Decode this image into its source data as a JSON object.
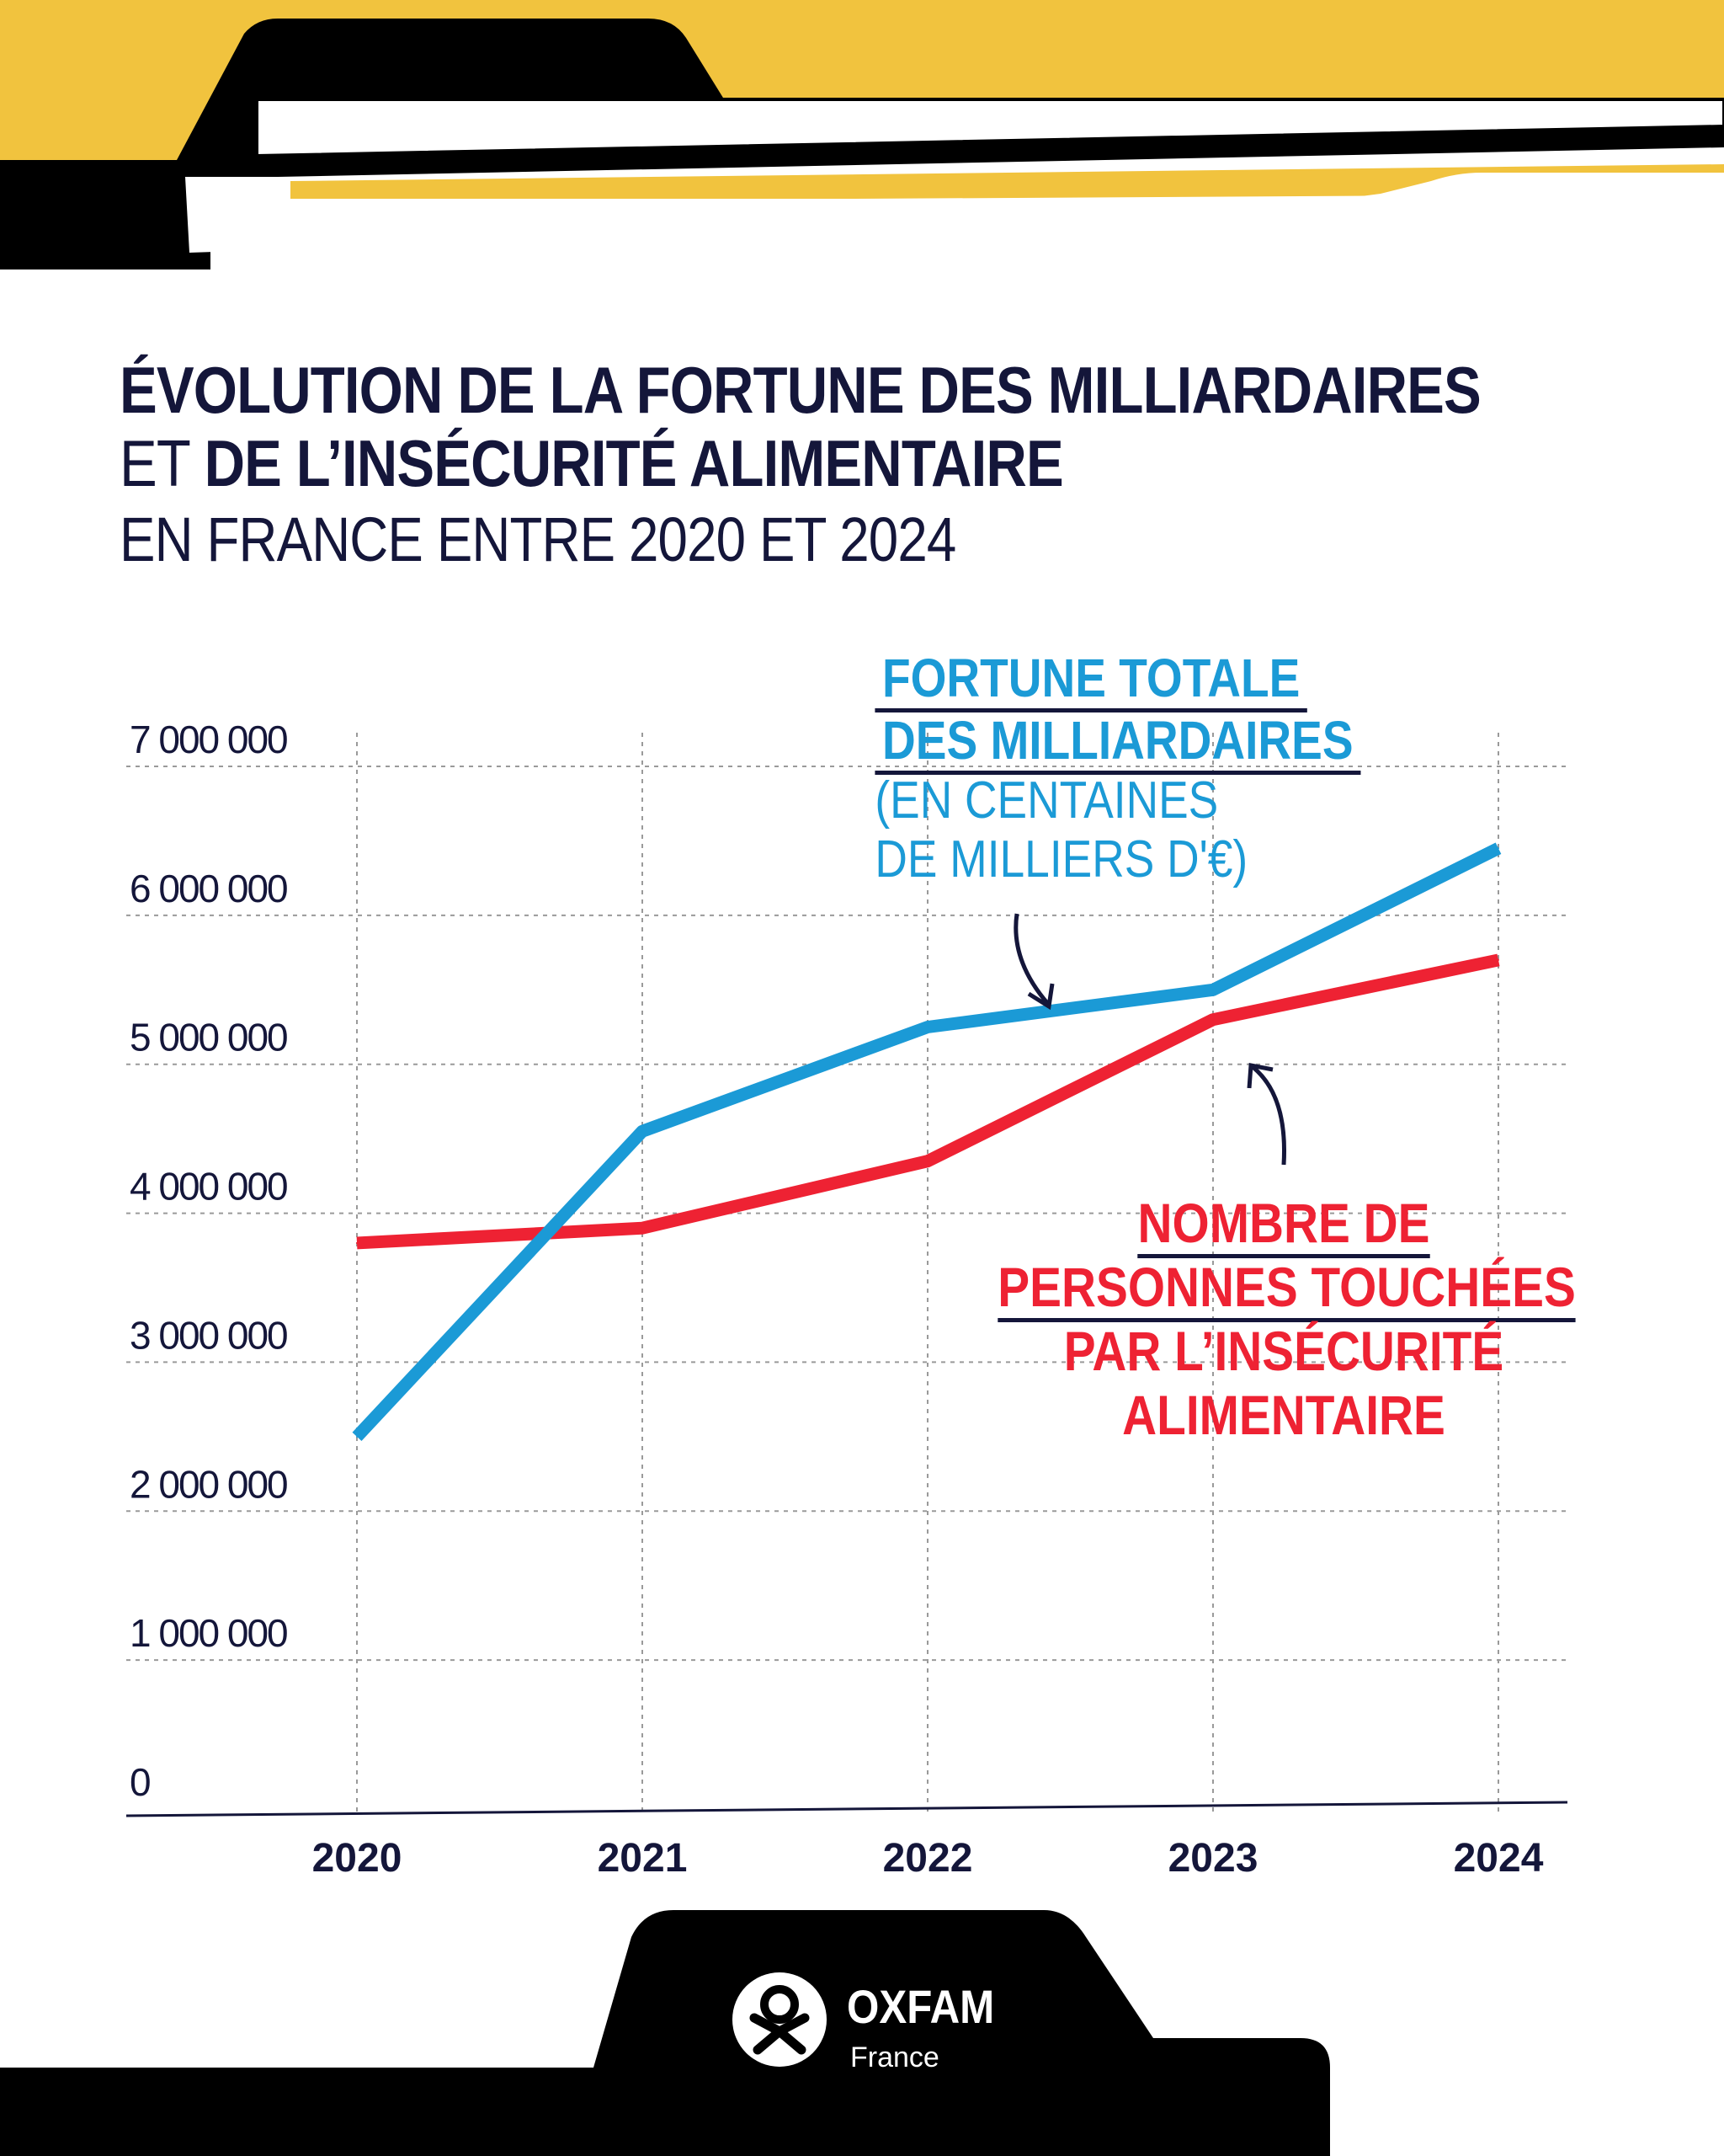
{
  "title": {
    "line1": "ÉVOLUTION DE LA FORTUNE DES MILLIARDAIRES",
    "line2_normal": "ET ",
    "line2_bold": "DE L’INSÉCURITÉ ALIMENTAIRE",
    "line3": "EN FRANCE ENTRE 2020 ET 2024"
  },
  "annotations": {
    "fortune": {
      "line1": "FORTUNE TOTALE",
      "line2": "DES MILLIARDAIRES",
      "line3": "(EN CENTAINES",
      "line4": "DE MILLIERS D'€)"
    },
    "insecurite": {
      "line1": "NOMBRE DE",
      "line2": "PERSONNES TOUCHÉES",
      "line3": "PAR L’INSÉCURITÉ",
      "line4": "ALIMENTAIRE"
    }
  },
  "brand": {
    "name": "OXFAM",
    "sub": "France"
  },
  "colors": {
    "yellow": "#f1c33e",
    "black": "#000000",
    "navy": "#14163a",
    "blue": "#1b9ad6",
    "red": "#ee2233",
    "grid": "#9a9a9a"
  },
  "chart_data": {
    "type": "line",
    "title": "ÉVOLUTION DE LA FORTUNE DES MILLIARDAIRES ET DE L’INSÉCURITÉ ALIMENTAIRE EN FRANCE ENTRE 2020 ET 2024",
    "x": [
      "2020",
      "2021",
      "2022",
      "2023",
      "2024"
    ],
    "ylim": [
      0,
      7000000
    ],
    "yticks": [
      0,
      1000000,
      2000000,
      3000000,
      4000000,
      5000000,
      6000000,
      7000000
    ],
    "ytick_labels": [
      "0",
      "1 000 000",
      "2 000 000",
      "3 000 000",
      "4 000 000",
      "5 000 000",
      "6 000 000",
      "7 000 000"
    ],
    "grid": true,
    "series": [
      {
        "name": "Fortune totale des milliardaires (en centaines de milliers d'€)",
        "color": "#1b9ad6",
        "values": [
          2500000,
          4550000,
          5250000,
          5500000,
          6450000
        ]
      },
      {
        "name": "Nombre de personnes touchées par l’insécurité alimentaire",
        "color": "#ee2233",
        "values": [
          3800000,
          3900000,
          4350000,
          5300000,
          5700000
        ]
      }
    ]
  }
}
